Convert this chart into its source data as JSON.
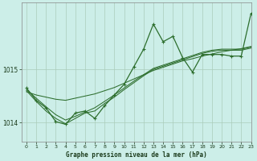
{
  "title": "Graphe pression niveau de la mer (hPa)",
  "background_color": "#cceee8",
  "grid_color": "#aaccbb",
  "line_color": "#2d6e2d",
  "text_color": "#1a3a1a",
  "xlim": [
    -0.5,
    23
  ],
  "ylim": [
    1013.65,
    1016.25
  ],
  "yticks": [
    1014,
    1015
  ],
  "xticks": [
    0,
    1,
    2,
    3,
    4,
    5,
    6,
    7,
    8,
    9,
    10,
    11,
    12,
    13,
    14,
    15,
    16,
    17,
    18,
    19,
    20,
    21,
    22,
    23
  ],
  "main_line": [
    1014.65,
    1014.42,
    1014.28,
    1014.02,
    1013.97,
    1014.18,
    1014.22,
    1014.08,
    1014.32,
    1014.52,
    1014.72,
    1015.05,
    1015.38,
    1015.85,
    1015.52,
    1015.62,
    1015.22,
    1014.95,
    1015.28,
    1015.28,
    1015.28,
    1015.25,
    1015.25,
    1016.05
  ],
  "line2": [
    1014.58,
    1014.52,
    1014.48,
    1014.44,
    1014.42,
    1014.46,
    1014.5,
    1014.54,
    1014.6,
    1014.66,
    1014.74,
    1014.82,
    1014.9,
    1014.98,
    1015.04,
    1015.1,
    1015.16,
    1015.2,
    1015.25,
    1015.29,
    1015.33,
    1015.36,
    1015.39,
    1015.43
  ],
  "line3": [
    1014.62,
    1014.46,
    1014.3,
    1014.15,
    1014.05,
    1014.12,
    1014.2,
    1014.28,
    1014.4,
    1014.52,
    1014.65,
    1014.78,
    1014.9,
    1015.02,
    1015.08,
    1015.14,
    1015.2,
    1015.26,
    1015.32,
    1015.36,
    1015.38,
    1015.38,
    1015.38,
    1015.42
  ],
  "line4": [
    1014.6,
    1014.4,
    1014.22,
    1014.08,
    1013.98,
    1014.08,
    1014.18,
    1014.22,
    1014.36,
    1014.48,
    1014.62,
    1014.75,
    1014.88,
    1015.0,
    1015.06,
    1015.12,
    1015.18,
    1015.24,
    1015.3,
    1015.34,
    1015.36,
    1015.36,
    1015.36,
    1015.4
  ]
}
